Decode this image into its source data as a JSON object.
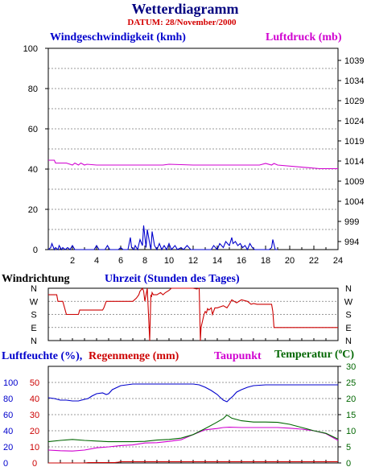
{
  "title": "Wetterdiagramm",
  "subtitle": "DATUM: 28/November/2000",
  "colors": {
    "wind": "#0000cc",
    "pressure": "#d000d0",
    "direction": "#cc0000",
    "humidity": "#0000cc",
    "rain": "#cc0000",
    "dewpoint": "#d000d0",
    "temperature": "#006600",
    "title": "#000080"
  },
  "chart_data": [
    {
      "type": "line",
      "name": "wind-pressure",
      "series": [
        {
          "name": "Windgeschwindigkeit (kmh)",
          "axis": "left",
          "x": [
            0.0,
            0.2,
            0.3,
            0.5,
            0.6,
            0.8,
            0.9,
            1.1,
            1.2,
            1.4,
            1.6,
            1.8,
            2.0,
            2.2,
            2.4,
            3.8,
            4.0,
            4.2,
            4.7,
            4.9,
            5.1,
            5.8,
            6.0,
            6.2,
            6.6,
            6.8,
            6.9,
            7.1,
            7.2,
            7.4,
            7.6,
            7.8,
            7.9,
            8.1,
            8.2,
            8.4,
            8.5,
            8.6,
            8.8,
            9.0,
            9.2,
            9.4,
            9.6,
            9.8,
            10.0,
            10.2,
            10.5,
            10.7,
            11.0,
            11.2,
            11.5,
            11.8,
            12.0,
            12.2,
            13.5,
            13.7,
            14.0,
            14.2,
            14.5,
            14.7,
            15.0,
            15.2,
            15.3,
            15.5,
            15.7,
            15.9,
            16.1,
            16.3,
            16.5,
            16.7,
            16.9,
            17.1,
            18.3,
            18.5,
            18.6,
            18.8,
            19.0
          ],
          "y": [
            0,
            1,
            3,
            0,
            1,
            0,
            2,
            0,
            1,
            0,
            1,
            0,
            2,
            0,
            0,
            0,
            2,
            0,
            0,
            2,
            0,
            0,
            1,
            0,
            0,
            6,
            1,
            0,
            2,
            0,
            5,
            2,
            12,
            1,
            10,
            3,
            0,
            9,
            2,
            0,
            3,
            0,
            2,
            0,
            3,
            0,
            2,
            0,
            1,
            0,
            2,
            0,
            0,
            0,
            0,
            2,
            0,
            3,
            1,
            4,
            2,
            6,
            3,
            4,
            2,
            3,
            1,
            2,
            0,
            3,
            1,
            0,
            0,
            1,
            5,
            0,
            0
          ]
        },
        {
          "name": "Luftdruck (mb)",
          "axis": "right",
          "x": [
            0.0,
            0.5,
            0.6,
            1.5,
            2.0,
            2.2,
            2.5,
            2.7,
            3.0,
            3.2,
            4.0,
            7.0,
            9.5,
            10.0,
            12.0,
            17.5,
            18.0,
            18.5,
            18.7,
            19.0,
            22.5,
            24.0
          ],
          "y": [
            1014.2,
            1014.2,
            1013.5,
            1013.5,
            1013.0,
            1013.5,
            1013.0,
            1013.5,
            1013.0,
            1013.2,
            1013.0,
            1013.0,
            1013.0,
            1013.2,
            1013.0,
            1013.0,
            1013.4,
            1013.0,
            1013.4,
            1013.0,
            1012.1,
            1012.1
          ]
        }
      ],
      "xlim": [
        0,
        24
      ],
      "xticks": [
        2,
        4,
        6,
        8,
        10,
        12,
        14,
        16,
        18,
        20,
        22,
        24
      ],
      "ylim_left": [
        0,
        100
      ],
      "yticks_left": [
        0,
        20,
        40,
        60,
        80,
        100
      ],
      "ylim_right": [
        992,
        1042
      ],
      "yticks_right": [
        994,
        999,
        1004,
        1009,
        1014,
        1019,
        1024,
        1029,
        1034,
        1039
      ],
      "grid": true
    },
    {
      "type": "line",
      "name": "direction",
      "series": [
        {
          "name": "Windrichtung",
          "x": [
            0.0,
            0.7,
            0.8,
            1.2,
            1.5,
            2.5,
            2.6,
            4.5,
            4.6,
            4.8,
            7.0,
            7.3,
            7.5,
            7.6,
            7.8,
            7.9,
            8.0,
            8.1,
            8.2,
            8.3,
            8.4,
            8.5,
            8.55,
            8.6,
            8.7,
            9.0,
            9.3,
            9.5,
            9.7,
            10.0,
            10.2,
            11.5,
            12.0,
            12.3,
            12.5,
            12.6,
            12.65,
            12.9,
            13.0,
            13.1,
            13.2,
            13.3,
            13.5,
            13.6,
            13.8,
            14.0,
            14.5,
            14.8,
            15.0,
            15.2,
            15.6,
            16.0,
            16.5,
            16.8,
            17.0,
            17.3,
            18.0,
            18.5,
            18.6,
            18.7,
            24.0
          ],
          "y": [
            315,
            315,
            270,
            270,
            180,
            180,
            210,
            210,
            225,
            270,
            270,
            292,
            315,
            340,
            360,
            340,
            270,
            315,
            360,
            180,
            0,
            315,
            300,
            330,
            315,
            315,
            330,
            315,
            330,
            345,
            360,
            360,
            360,
            355,
            360,
            0,
            90,
            180,
            200,
            190,
            220,
            210,
            225,
            180,
            225,
            225,
            240,
            225,
            250,
            280,
            260,
            280,
            270,
            250,
            255,
            250,
            250,
            250,
            200,
            90,
            90
          ]
        }
      ],
      "xlim": [
        0,
        24
      ],
      "ylim": [
        0,
        360
      ],
      "ytick_labels": [
        "N",
        "E",
        "S",
        "W",
        "N"
      ],
      "grid": true
    },
    {
      "type": "line",
      "name": "humidity-rain-dewpoint-temperature",
      "series": [
        {
          "name": "Luftfeuchte (%)",
          "axis": "left",
          "x": [
            0.0,
            0.5,
            1.0,
            1.5,
            2.0,
            2.5,
            3.0,
            3.3,
            3.6,
            4.0,
            4.5,
            4.8,
            5.0,
            5.3,
            6.0,
            7.0,
            8.0,
            9.0,
            10.0,
            11.0,
            12.0,
            12.5,
            13.0,
            13.5,
            14.0,
            14.2,
            14.5,
            14.8,
            15.0,
            15.3,
            15.6,
            16.0,
            16.5,
            17.0,
            18.0,
            19.0,
            20.0,
            21.0,
            22.0,
            23.0,
            24.0
          ],
          "y": [
            81,
            80,
            78,
            78,
            77,
            77,
            79,
            80,
            83,
            86,
            87,
            85,
            86,
            91,
            96,
            98,
            98,
            98,
            98,
            98,
            98,
            97,
            94,
            90,
            85,
            82,
            78,
            76,
            79,
            83,
            88,
            91,
            94,
            96,
            97,
            97,
            97,
            97,
            97,
            97,
            97
          ]
        },
        {
          "name": "Regenmenge (mm)",
          "axis": "left_rain",
          "x": [
            0.0,
            3.0,
            3.3,
            5.5,
            5.8,
            6.0,
            18.0,
            24.0
          ],
          "y": [
            0,
            0,
            0.2,
            0.2,
            0.5,
            0.8,
            0.8,
            0.8
          ]
        },
        {
          "name": "Taupunkt",
          "axis": "right",
          "x": [
            0.0,
            1.0,
            2.0,
            3.0,
            4.0,
            5.0,
            6.0,
            7.0,
            8.0,
            9.0,
            10.0,
            11.0,
            12.0,
            13.0,
            14.0,
            14.5,
            15.0,
            16.0,
            17.0,
            18.0,
            19.0,
            20.0,
            21.0,
            22.0,
            23.0,
            24.0
          ],
          "y": [
            4.0,
            3.8,
            3.7,
            4.0,
            4.7,
            5.0,
            5.4,
            5.6,
            6.2,
            6.3,
            6.7,
            7.2,
            8.8,
            10.3,
            10.7,
            11.0,
            11.1,
            11.0,
            11.0,
            11.0,
            11.0,
            10.8,
            10.5,
            10.0,
            9.1,
            7.0
          ]
        },
        {
          "name": "Temperatur (°C)",
          "axis": "right",
          "x": [
            0.0,
            1.0,
            2.0,
            3.0,
            4.0,
            5.0,
            6.0,
            7.0,
            8.0,
            9.0,
            10.0,
            11.0,
            12.0,
            13.0,
            13.8,
            14.5,
            14.8,
            15.2,
            16.0,
            17.0,
            18.0,
            19.0,
            20.0,
            21.0,
            22.0,
            23.0,
            24.0
          ],
          "y": [
            6.6,
            7.0,
            7.3,
            7.0,
            6.8,
            6.6,
            6.6,
            6.6,
            6.7,
            7.1,
            7.3,
            7.7,
            8.8,
            10.7,
            12.3,
            13.8,
            14.9,
            13.9,
            13.1,
            12.7,
            12.7,
            12.6,
            12.0,
            11.0,
            10.0,
            9.2,
            7.4
          ]
        }
      ],
      "xlim": [
        0,
        24
      ],
      "ylim_humidity": [
        0,
        120
      ],
      "yticks_humidity": [
        0,
        20,
        40,
        60,
        80,
        100
      ],
      "ylim_rain": [
        0,
        60
      ],
      "yticks_rain": [
        0,
        10,
        20,
        30,
        40,
        50
      ],
      "ylim_temperature": [
        0,
        30
      ],
      "yticks_temperature": [
        0,
        5,
        10,
        15,
        20,
        25,
        30
      ],
      "grid": true
    }
  ],
  "labels": {
    "wind": "Windgeschwindigkeit (kmh)",
    "pressure": "Luftdruck (mb)",
    "direction": "Windrichtung",
    "hours": "Uhrzeit (Stunden des Tages)",
    "humidity": "Luftfeuchte (%),",
    "rain": "Regenmenge (mm)",
    "dewpoint": "Taupunkt",
    "temperature": "Temperatur (",
    "temperature_unit": "o",
    "temperature_end": "C)"
  }
}
